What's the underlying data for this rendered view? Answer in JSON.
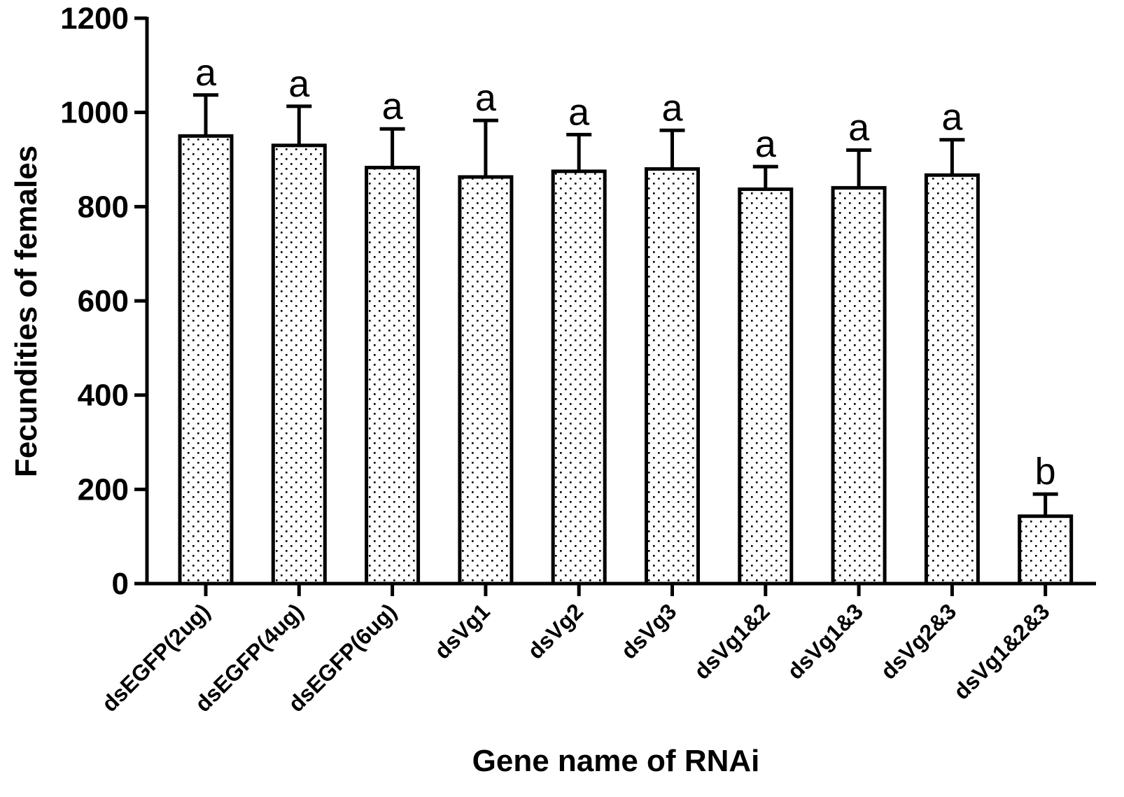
{
  "chart_data": {
    "type": "bar",
    "title": "",
    "xlabel": "Gene name of RNAi",
    "ylabel": "Fecundities of females",
    "ylim": [
      0,
      1200
    ],
    "yticks": [
      "0",
      "200",
      "400",
      "600",
      "800",
      "1000",
      "1200"
    ],
    "grid": false,
    "bar_fill": "dotted pattern",
    "bar_color": "#ffffff",
    "edge_color": "#000000",
    "categories": [
      "dsEGFP(2ug)",
      "dsEGFP(4ug)",
      "dsEGFP(6ug)",
      "dsVg1",
      "dsVg2",
      "dsVg3",
      "dsVg1&2",
      "dsVg1&3",
      "dsVg2&3",
      "dsVg1&2&3"
    ],
    "series": [
      {
        "values": [
          950,
          930,
          883,
          863,
          875,
          880,
          837,
          840,
          867,
          143
        ],
        "error_upper": [
          87,
          83,
          82,
          120,
          78,
          82,
          48,
          80,
          75,
          47
        ],
        "significance_labels": [
          "a",
          "a",
          "a",
          "a",
          "a",
          "a",
          "a",
          "a",
          "a",
          "b"
        ]
      }
    ]
  }
}
